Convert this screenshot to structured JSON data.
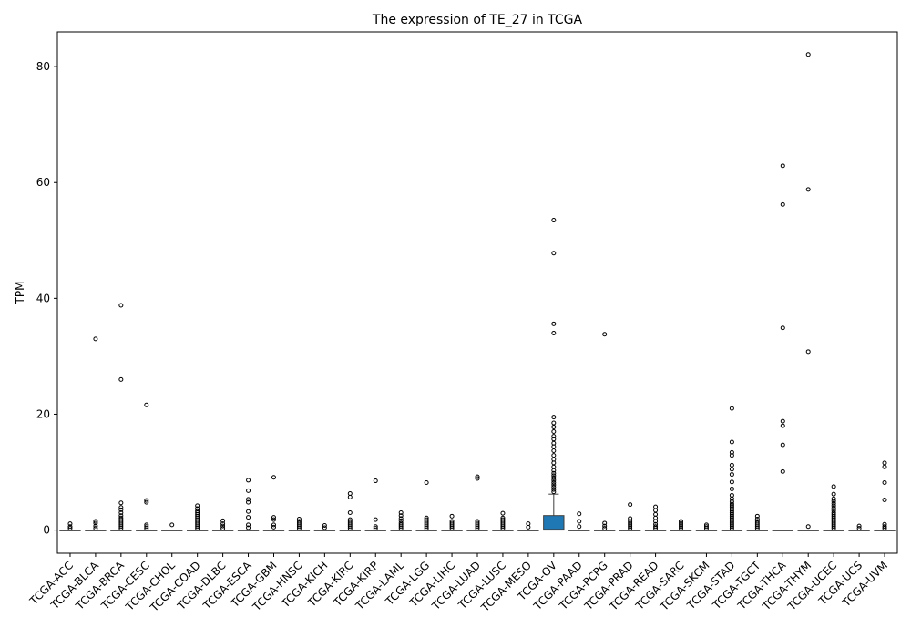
{
  "chart_data": {
    "type": "box",
    "title": "The expression of TE_27 in TCGA",
    "xlabel": "",
    "ylabel": "TPM",
    "ylim": [
      -4,
      86
    ],
    "yticks": [
      0,
      20,
      40,
      60,
      80
    ],
    "box_color": "#1f77b4",
    "categories": [
      "TCGA-ACC",
      "TCGA-BLCA",
      "TCGA-BRCA",
      "TCGA-CESC",
      "TCGA-CHOL",
      "TCGA-COAD",
      "TCGA-DLBC",
      "TCGA-ESCA",
      "TCGA-GBM",
      "TCGA-HNSC",
      "TCGA-KICH",
      "TCGA-KIRC",
      "TCGA-KIRP",
      "TCGA-LAML",
      "TCGA-LGG",
      "TCGA-LIHC",
      "TCGA-LUAD",
      "TCGA-LUSC",
      "TCGA-MESO",
      "TCGA-OV",
      "TCGA-PAAD",
      "TCGA-PCPG",
      "TCGA-PRAD",
      "TCGA-READ",
      "TCGA-SARC",
      "TCGA-SKCM",
      "TCGA-STAD",
      "TCGA-TGCT",
      "TCGA-THCA",
      "TCGA-THYM",
      "TCGA-UCEC",
      "TCGA-UCS",
      "TCGA-UVM"
    ],
    "boxes": [
      {
        "q1": 0,
        "median": 0,
        "q3": 0,
        "whisker_low": 0,
        "whisker_high": 0,
        "outliers": [
          0.3,
          0.6,
          1.1
        ]
      },
      {
        "q1": 0,
        "median": 0,
        "q3": 0,
        "whisker_low": 0,
        "whisker_high": 0,
        "outliers": [
          0.3,
          0.7,
          1.2,
          1.5,
          33
        ]
      },
      {
        "q1": 0,
        "median": 0,
        "q3": 0,
        "whisker_low": 0,
        "whisker_high": 0,
        "outliers": [
          0.3,
          0.6,
          0.9,
          1.2,
          1.5,
          1.8,
          2.1,
          2.5,
          3.0,
          3.5,
          3.9,
          4.7,
          26,
          38.8
        ]
      },
      {
        "q1": 0,
        "median": 0,
        "q3": 0,
        "whisker_low": 0,
        "whisker_high": 0,
        "outliers": [
          0.3,
          0.6,
          0.9,
          4.8,
          5.1,
          21.6
        ]
      },
      {
        "q1": 0,
        "median": 0,
        "q3": 0,
        "whisker_low": 0,
        "whisker_high": 0,
        "outliers": [
          0.9
        ]
      },
      {
        "q1": 0,
        "median": 0,
        "q3": 0,
        "whisker_low": 0,
        "whisker_high": 0,
        "outliers": [
          0.3,
          0.6,
          0.9,
          1.2,
          1.5,
          1.8,
          2.1,
          2.4,
          2.7,
          3.0,
          3.3,
          3.7,
          4.2
        ]
      },
      {
        "q1": 0,
        "median": 0,
        "q3": 0,
        "whisker_low": 0,
        "whisker_high": 0,
        "outliers": [
          0.3,
          0.7,
          1.1,
          1.6
        ]
      },
      {
        "q1": 0,
        "median": 0,
        "q3": 0,
        "whisker_low": 0,
        "whisker_high": 0,
        "outliers": [
          0.4,
          0.9,
          2.2,
          3.2,
          4.8,
          5.3,
          6.8,
          8.6
        ]
      },
      {
        "q1": 0,
        "median": 0,
        "q3": 0,
        "whisker_low": 0,
        "whisker_high": 0,
        "outliers": [
          0.5,
          0.9,
          1.8,
          2.2,
          9.1
        ]
      },
      {
        "q1": 0,
        "median": 0,
        "q3": 0,
        "whisker_low": 0,
        "whisker_high": 0,
        "outliers": [
          0.3,
          0.6,
          0.9,
          1.2,
          1.5,
          1.9
        ]
      },
      {
        "q1": 0,
        "median": 0,
        "q3": 0,
        "whisker_low": 0,
        "whisker_high": 0,
        "outliers": [
          0.4,
          0.8
        ]
      },
      {
        "q1": 0,
        "median": 0,
        "q3": 0,
        "whisker_low": 0,
        "whisker_high": 0,
        "outliers": [
          0.3,
          0.6,
          0.9,
          1.2,
          1.5,
          1.8,
          3.0,
          5.7,
          6.3
        ]
      },
      {
        "q1": 0,
        "median": 0,
        "q3": 0,
        "whisker_low": 0,
        "whisker_high": 0,
        "outliers": [
          0.3,
          0.6,
          1.8,
          8.5
        ]
      },
      {
        "q1": 0,
        "median": 0,
        "q3": 0,
        "whisker_low": 0,
        "whisker_high": 0,
        "outliers": [
          0.3,
          0.6,
          0.9,
          1.2,
          1.6,
          2.0,
          2.5,
          3.0
        ]
      },
      {
        "q1": 0,
        "median": 0,
        "q3": 0,
        "whisker_low": 0,
        "whisker_high": 0,
        "outliers": [
          0.3,
          0.6,
          0.9,
          1.2,
          1.5,
          1.8,
          2.1,
          8.2
        ]
      },
      {
        "q1": 0,
        "median": 0,
        "q3": 0,
        "whisker_low": 0,
        "whisker_high": 0,
        "outliers": [
          0.3,
          0.6,
          0.9,
          1.2,
          1.5,
          2.4
        ]
      },
      {
        "q1": 0,
        "median": 0,
        "q3": 0,
        "whisker_low": 0,
        "whisker_high": 0,
        "outliers": [
          0.3,
          0.6,
          0.9,
          1.2,
          1.5,
          8.9,
          9.2
        ]
      },
      {
        "q1": 0,
        "median": 0,
        "q3": 0,
        "whisker_low": 0,
        "whisker_high": 0,
        "outliers": [
          0.3,
          0.6,
          0.9,
          1.2,
          1.5,
          1.8,
          2.1,
          2.9
        ]
      },
      {
        "q1": 0,
        "median": 0,
        "q3": 0,
        "whisker_low": 0,
        "whisker_high": 0,
        "outliers": [
          0.5,
          1.1
        ]
      },
      {
        "q1": 0,
        "median": 0.1,
        "q3": 2.5,
        "whisker_low": 0,
        "whisker_high": 6.2,
        "outliers": [
          6.6,
          7.0,
          7.4,
          7.8,
          8.2,
          8.6,
          9.0,
          9.4,
          9.8,
          10.3,
          10.9,
          11.6,
          12.2,
          12.9,
          13.7,
          14.4,
          15.0,
          15.7,
          16.2,
          17.0,
          17.8,
          18.5,
          19.5,
          34,
          35.6,
          47.8,
          53.5
        ]
      },
      {
        "q1": 0,
        "median": 0,
        "q3": 0,
        "whisker_low": 0,
        "whisker_high": 0,
        "outliers": [
          0.6,
          1.5,
          2.8
        ]
      },
      {
        "q1": 0,
        "median": 0,
        "q3": 0,
        "whisker_low": 0,
        "whisker_high": 0,
        "outliers": [
          0.3,
          0.7,
          1.2,
          33.8
        ]
      },
      {
        "q1": 0,
        "median": 0,
        "q3": 0,
        "whisker_low": 0,
        "whisker_high": 0,
        "outliers": [
          0.3,
          0.6,
          0.9,
          1.2,
          1.5,
          2.0,
          4.4
        ]
      },
      {
        "q1": 0,
        "median": 0,
        "q3": 0,
        "whisker_low": 0,
        "whisker_high": 0,
        "outliers": [
          0.3,
          0.6,
          1.0,
          1.5,
          2.1,
          2.7,
          3.4,
          4.0
        ]
      },
      {
        "q1": 0,
        "median": 0,
        "q3": 0,
        "whisker_low": 0,
        "whisker_high": 0,
        "outliers": [
          0.3,
          0.6,
          0.9,
          1.2,
          1.5
        ]
      },
      {
        "q1": 0,
        "median": 0,
        "q3": 0,
        "whisker_low": 0,
        "whisker_high": 0,
        "outliers": [
          0.3,
          0.6,
          0.9
        ]
      },
      {
        "q1": 0,
        "median": 0,
        "q3": 0,
        "whisker_low": 0,
        "whisker_high": 0,
        "outliers": [
          0.3,
          0.6,
          0.9,
          1.2,
          1.5,
          1.8,
          2.1,
          2.4,
          2.7,
          3.0,
          3.3,
          3.6,
          3.9,
          4.2,
          4.5,
          4.9,
          5.4,
          6.0,
          7.1,
          8.3,
          9.6,
          10.5,
          11.2,
          12.9,
          13.4,
          15.2,
          21
        ]
      },
      {
        "q1": 0,
        "median": 0,
        "q3": 0,
        "whisker_low": 0,
        "whisker_high": 0,
        "outliers": [
          0.3,
          0.6,
          0.9,
          1.2,
          1.5,
          1.9,
          2.4
        ]
      },
      {
        "q1": 0,
        "median": 0,
        "q3": 0,
        "whisker_low": 0,
        "whisker_high": 0,
        "outliers": [
          10.1,
          14.7,
          18.0,
          18.8,
          34.9,
          56.2,
          62.9
        ]
      },
      {
        "q1": 0,
        "median": 0,
        "q3": 0,
        "whisker_low": 0,
        "whisker_high": 0,
        "outliers": [
          0.6,
          30.8,
          58.8,
          82.1
        ]
      },
      {
        "q1": 0,
        "median": 0,
        "q3": 0,
        "whisker_low": 0,
        "whisker_high": 0,
        "outliers": [
          0.3,
          0.6,
          0.9,
          1.2,
          1.5,
          1.8,
          2.1,
          2.4,
          2.7,
          3.0,
          3.4,
          3.8,
          4.2,
          4.6,
          5.0,
          5.4,
          6.2,
          7.5
        ]
      },
      {
        "q1": 0,
        "median": 0,
        "q3": 0,
        "whisker_low": 0,
        "whisker_high": 0,
        "outliers": [
          0.3,
          0.7
        ]
      },
      {
        "q1": 0,
        "median": 0,
        "q3": 0,
        "whisker_low": 0,
        "whisker_high": 0,
        "outliers": [
          0.3,
          0.6,
          1.0,
          5.2,
          8.2,
          10.9,
          11.6
        ]
      }
    ]
  }
}
